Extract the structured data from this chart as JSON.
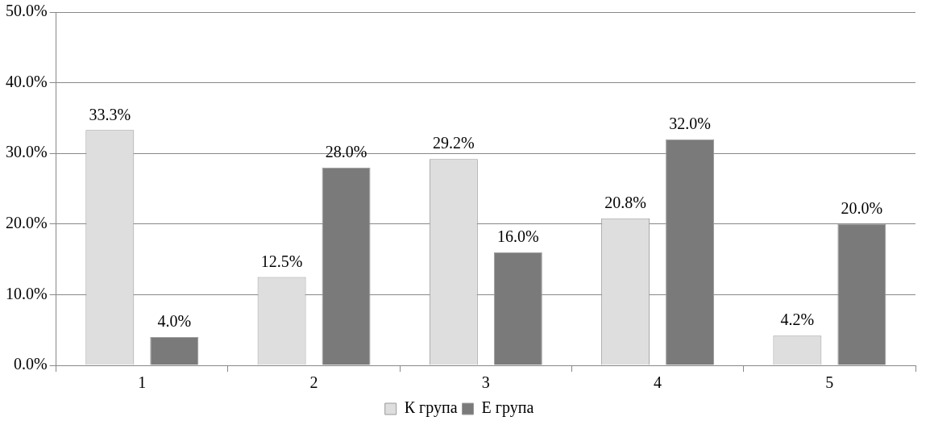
{
  "chart_data": {
    "type": "bar",
    "categories": [
      "1",
      "2",
      "3",
      "4",
      "5"
    ],
    "series": [
      {
        "name": "К група",
        "color": "#dedede",
        "values": [
          33.3,
          12.5,
          29.2,
          20.8,
          4.2
        ],
        "value_labels": [
          "33.3%",
          "12.5%",
          "29.2%",
          "20.8%",
          "4.2%"
        ]
      },
      {
        "name": "Е група",
        "color": "#7a7a7a",
        "values": [
          4.0,
          28.0,
          16.0,
          32.0,
          20.0
        ],
        "value_labels": [
          "4.0%",
          "28.0%",
          "16.0%",
          "32.0%",
          "20.0%"
        ]
      }
    ],
    "ylim": [
      0,
      50
    ],
    "yticks": [
      {
        "value": 0,
        "label": "0.0%"
      },
      {
        "value": 10,
        "label": "10.0%"
      },
      {
        "value": 20,
        "label": "20.0%"
      },
      {
        "value": 30,
        "label": "30.0%"
      },
      {
        "value": 40,
        "label": "40.0%"
      },
      {
        "value": 50,
        "label": "50.0%"
      }
    ],
    "grid": "y",
    "legend": "bottom"
  }
}
